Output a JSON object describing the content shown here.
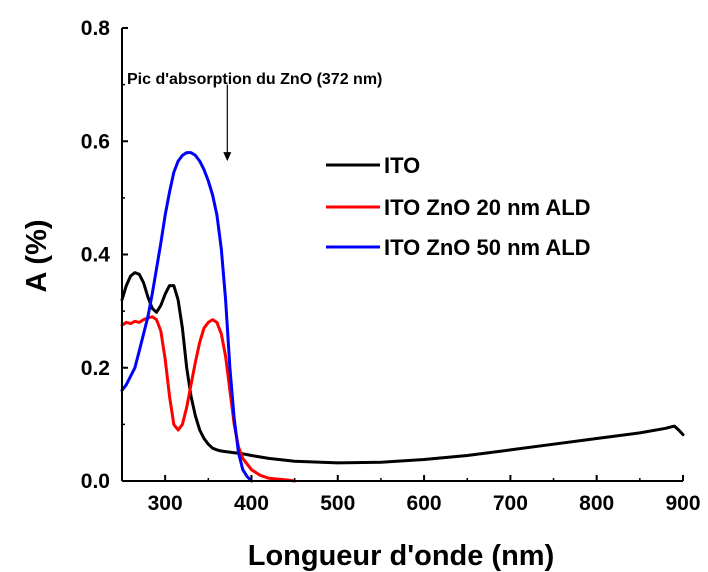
{
  "chart_data": {
    "type": "line",
    "xlabel": "Longueur d'onde (nm)",
    "ylabel": "A (%)",
    "xlim": [
      250,
      900
    ],
    "ylim": [
      0,
      0.8
    ],
    "xticks": [
      300,
      400,
      500,
      600,
      700,
      800,
      900
    ],
    "yticks": [
      0.0,
      0.2,
      0.4,
      0.6,
      0.8
    ],
    "ytick_labels": [
      "0.0",
      "0.2",
      "0.4",
      "0.6",
      "0.8"
    ],
    "grid": false,
    "legend_position": "top-right",
    "annotation": {
      "text": "Pic d'absorption du ZnO  (372 nm)",
      "arrow_x": 372,
      "arrow_from_y": 0.7,
      "arrow_to_y": 0.565
    },
    "series": [
      {
        "name": "ITO",
        "color": "#000000",
        "x": [
          250,
          255,
          260,
          265,
          270,
          275,
          280,
          285,
          290,
          295,
          300,
          305,
          310,
          315,
          320,
          325,
          330,
          335,
          340,
          345,
          350,
          355,
          360,
          365,
          370,
          380,
          390,
          400,
          420,
          450,
          500,
          550,
          600,
          650,
          700,
          750,
          800,
          850,
          880,
          890,
          895,
          900
        ],
        "y": [
          0.32,
          0.345,
          0.362,
          0.368,
          0.365,
          0.35,
          0.325,
          0.305,
          0.298,
          0.31,
          0.33,
          0.345,
          0.345,
          0.32,
          0.27,
          0.2,
          0.15,
          0.115,
          0.09,
          0.075,
          0.065,
          0.058,
          0.055,
          0.053,
          0.052,
          0.05,
          0.048,
          0.045,
          0.04,
          0.035,
          0.032,
          0.033,
          0.038,
          0.045,
          0.055,
          0.065,
          0.075,
          0.085,
          0.093,
          0.097,
          0.09,
          0.082
        ]
      },
      {
        "name": "ITO ZnO 20 nm ALD",
        "color": "#ff0000",
        "x": [
          250,
          255,
          260,
          265,
          270,
          275,
          280,
          285,
          290,
          295,
          300,
          305,
          310,
          315,
          320,
          325,
          330,
          335,
          340,
          345,
          350,
          355,
          360,
          365,
          370,
          375,
          380,
          385,
          390,
          400,
          410,
          420,
          440,
          450
        ],
        "y": [
          0.275,
          0.28,
          0.278,
          0.282,
          0.28,
          0.285,
          0.288,
          0.29,
          0.285,
          0.265,
          0.215,
          0.15,
          0.1,
          0.09,
          0.1,
          0.13,
          0.17,
          0.21,
          0.245,
          0.27,
          0.28,
          0.285,
          0.28,
          0.26,
          0.22,
          0.16,
          0.1,
          0.06,
          0.04,
          0.02,
          0.01,
          0.005,
          0.002,
          0.0
        ]
      },
      {
        "name": "ITO ZnO 50 nm ALD",
        "color": "#0000ff",
        "x": [
          250,
          255,
          260,
          265,
          270,
          275,
          280,
          285,
          290,
          295,
          300,
          305,
          310,
          315,
          320,
          325,
          330,
          335,
          340,
          345,
          350,
          355,
          360,
          365,
          370,
          375,
          380,
          385,
          390,
          395,
          400
        ],
        "y": [
          0.16,
          0.17,
          0.185,
          0.2,
          0.23,
          0.26,
          0.29,
          0.33,
          0.375,
          0.42,
          0.47,
          0.51,
          0.545,
          0.565,
          0.575,
          0.58,
          0.58,
          0.575,
          0.565,
          0.55,
          0.53,
          0.505,
          0.47,
          0.41,
          0.32,
          0.2,
          0.11,
          0.05,
          0.02,
          0.008,
          0.0
        ]
      }
    ]
  }
}
